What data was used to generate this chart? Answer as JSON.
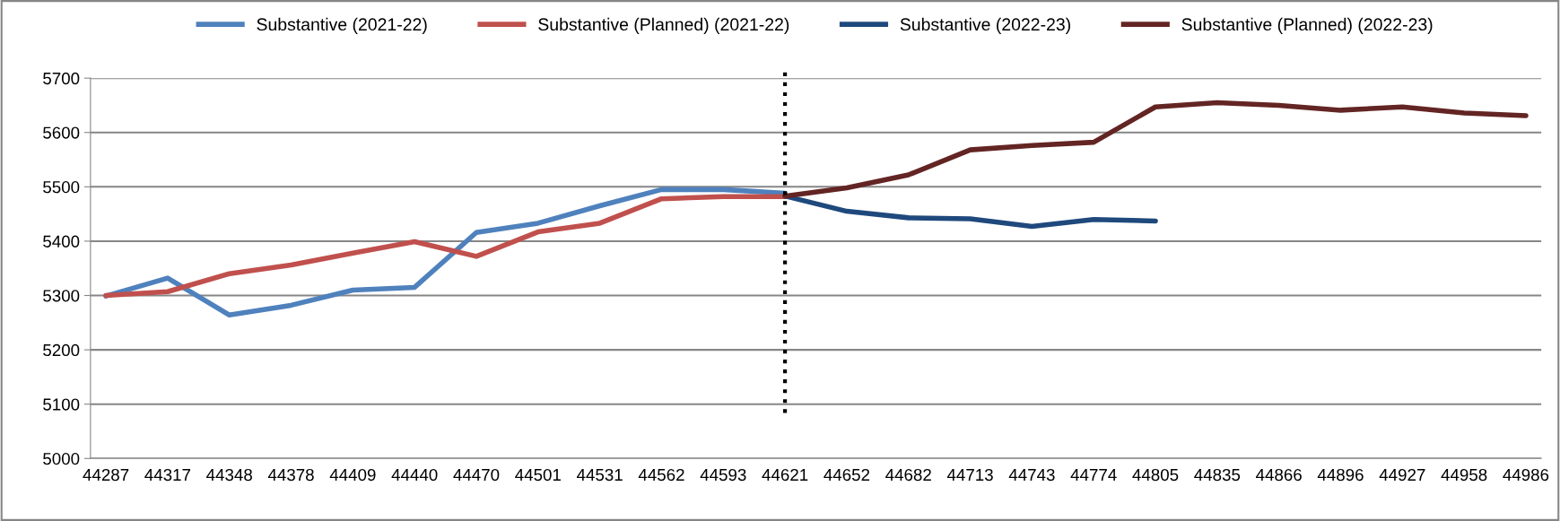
{
  "chart_data": {
    "type": "line",
    "categories": [
      "44287",
      "44317",
      "44348",
      "44378",
      "44409",
      "44440",
      "44470",
      "44501",
      "44531",
      "44562",
      "44593",
      "44621",
      "44652",
      "44682",
      "44713",
      "44743",
      "44774",
      "44805",
      "44835",
      "44866",
      "44896",
      "44927",
      "44958",
      "44986"
    ],
    "series": [
      {
        "name": "Substantive (2021-22)",
        "color": "#4f81bd",
        "values": [
          5299,
          5332,
          5264,
          5282,
          5310,
          5315,
          5416,
          5433,
          5465,
          5495,
          5495,
          5488,
          null,
          null,
          null,
          null,
          null,
          null,
          null,
          null,
          null,
          null,
          null,
          null
        ]
      },
      {
        "name": "Substantive (Planned) (2021-22)",
        "color": "#c0504d",
        "values": [
          5300,
          5307,
          5340,
          5356,
          5378,
          5399,
          5372,
          5417,
          5433,
          5478,
          5482,
          5482,
          null,
          null,
          null,
          null,
          null,
          null,
          null,
          null,
          null,
          null,
          null,
          null
        ]
      },
      {
        "name": "Substantive (2022-23)",
        "color": "#1f497d",
        "values": [
          null,
          null,
          null,
          null,
          null,
          null,
          null,
          null,
          null,
          null,
          null,
          5483,
          5455,
          5443,
          5441,
          5427,
          5440,
          5437,
          null,
          null,
          null,
          null,
          null,
          null
        ]
      },
      {
        "name": "Substantive (Planned) (2022-23)",
        "color": "#632523",
        "values": [
          null,
          null,
          null,
          null,
          null,
          null,
          null,
          null,
          null,
          null,
          null,
          5483,
          5498,
          5522,
          5568,
          5576,
          5582,
          5647,
          5655,
          5650,
          5641,
          5647,
          5636,
          5631
        ]
      }
    ],
    "ylim": [
      5000,
      5700
    ],
    "yticks": [
      5000,
      5100,
      5200,
      5300,
      5400,
      5500,
      5600,
      5700
    ],
    "grid": "y",
    "legend": "top",
    "marker": "none",
    "line_style": "solid",
    "ref_lines": [
      {
        "axis": "x",
        "value": "44621",
        "color": "#000000",
        "line_style": "dotted"
      }
    ]
  }
}
